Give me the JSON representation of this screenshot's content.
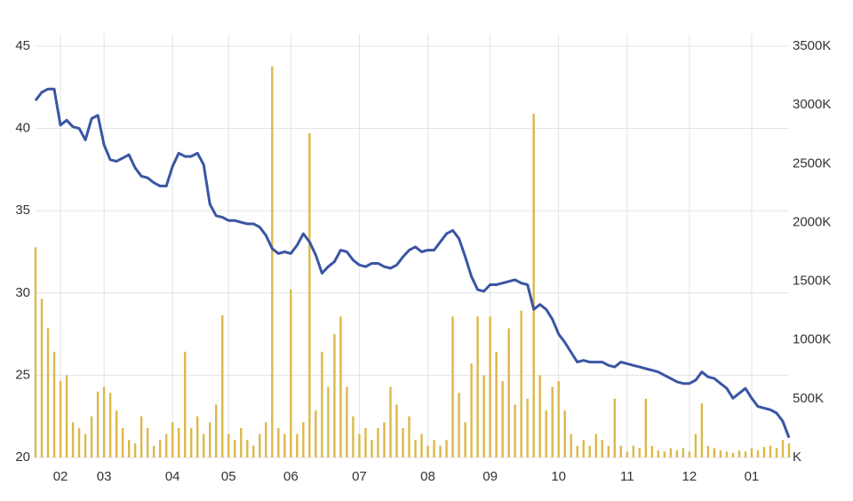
{
  "chart_data": {
    "type": "line",
    "categories": [
      null,
      null,
      null,
      null,
      "02",
      null,
      null,
      null,
      null,
      null,
      null,
      "03",
      null,
      null,
      null,
      null,
      null,
      null,
      null,
      null,
      null,
      null,
      "04",
      null,
      null,
      null,
      null,
      null,
      null,
      null,
      null,
      "05",
      null,
      null,
      null,
      null,
      null,
      null,
      null,
      null,
      null,
      "06",
      null,
      null,
      null,
      null,
      null,
      null,
      null,
      null,
      null,
      null,
      "07",
      null,
      null,
      null,
      null,
      null,
      null,
      null,
      null,
      null,
      null,
      "08",
      null,
      null,
      null,
      null,
      null,
      null,
      null,
      null,
      null,
      "09",
      null,
      null,
      null,
      null,
      null,
      null,
      null,
      null,
      null,
      null,
      "10",
      null,
      null,
      null,
      null,
      null,
      null,
      null,
      null,
      null,
      null,
      "11",
      null,
      null,
      null,
      null,
      null,
      null,
      null,
      null,
      null,
      "12",
      null,
      null,
      null,
      null,
      null,
      null,
      null,
      null,
      null,
      "01",
      null,
      null,
      null,
      null,
      null,
      null
    ],
    "series": [
      {
        "color": "#3a55a4",
        "values": [
          41.7,
          42.2,
          42.4,
          42.4,
          40.2,
          40.5,
          40.1,
          40.0,
          39.3,
          40.6,
          40.8,
          39.0,
          38.1,
          38.0,
          38.2,
          38.4,
          37.6,
          37.1,
          37.0,
          36.7,
          36.5,
          36.5,
          37.7,
          38.5,
          38.3,
          38.3,
          38.5,
          37.8,
          35.4,
          34.7,
          34.6,
          34.4,
          34.4,
          34.3,
          34.2,
          34.2,
          34.0,
          33.5,
          32.7,
          32.4,
          32.5,
          32.4,
          32.9,
          33.6,
          33.1,
          32.3,
          31.2,
          31.6,
          31.9,
          32.6,
          32.5,
          32.0,
          31.7,
          31.6,
          31.8,
          31.8,
          31.6,
          31.5,
          31.7,
          32.2,
          32.6,
          32.8,
          32.5,
          32.6,
          32.6,
          33.1,
          33.6,
          33.8,
          33.3,
          32.2,
          31.0,
          30.2,
          30.1,
          30.5,
          30.5,
          30.6,
          30.7,
          30.8,
          30.6,
          30.5,
          29.0,
          29.3,
          29.0,
          28.4,
          27.5,
          27.0,
          26.4,
          25.8,
          25.9,
          25.8,
          25.8,
          25.8,
          25.6,
          25.5,
          25.8,
          25.7,
          25.6,
          25.5,
          25.4,
          25.3,
          25.2,
          25.0,
          24.8,
          24.6,
          24.5,
          24.5,
          24.7,
          25.2,
          24.9,
          24.8,
          24.5,
          24.2,
          23.6,
          23.9,
          24.2,
          23.6,
          23.1,
          23.0,
          22.9,
          22.7,
          22.2,
          21.2
        ]
      },
      {
        "color": "#dcb84a",
        "type": "bar",
        "axis": "y2",
        "values": [
          1790000,
          1350000,
          1100000,
          900000,
          650000,
          700000,
          300000,
          250000,
          200000,
          350000,
          560000,
          600000,
          550000,
          400000,
          250000,
          150000,
          120000,
          350000,
          250000,
          100000,
          150000,
          200000,
          300000,
          250000,
          900000,
          250000,
          350000,
          200000,
          300000,
          450000,
          1210000,
          200000,
          150000,
          250000,
          150000,
          100000,
          200000,
          300000,
          3330000,
          250000,
          200000,
          1430000,
          200000,
          300000,
          2760000,
          400000,
          900000,
          600000,
          1050000,
          1200000,
          600000,
          350000,
          200000,
          250000,
          150000,
          250000,
          300000,
          600000,
          450000,
          250000,
          350000,
          150000,
          200000,
          100000,
          150000,
          100000,
          150000,
          1200000,
          550000,
          300000,
          800000,
          1200000,
          700000,
          1200000,
          900000,
          650000,
          1100000,
          450000,
          1250000,
          500000,
          2925000,
          700000,
          400000,
          600000,
          650000,
          400000,
          200000,
          100000,
          150000,
          100000,
          200000,
          150000,
          100000,
          500000,
          100000,
          50000,
          100000,
          80000,
          500000,
          100000,
          60000,
          50000,
          80000,
          60000,
          80000,
          50000,
          200000,
          460000,
          100000,
          80000,
          60000,
          50000,
          40000,
          60000,
          50000,
          80000,
          60000,
          90000,
          100000,
          80000,
          150000,
          120000
        ]
      }
    ],
    "ylim": [
      20,
      45
    ],
    "yticks": [
      20,
      25,
      30,
      35,
      40,
      45
    ],
    "y2lim": [
      0,
      3500000
    ],
    "y2ticks": [
      {
        "value": 0,
        "label": "K"
      },
      {
        "value": 500000,
        "label": "500K"
      },
      {
        "value": 1000000,
        "label": "1000K"
      },
      {
        "value": 1500000,
        "label": "1500K"
      },
      {
        "value": 2000000,
        "label": "2000K"
      },
      {
        "value": 2500000,
        "label": "2500K"
      },
      {
        "value": 3000000,
        "label": "3000K"
      },
      {
        "value": 3500000,
        "label": "3500K"
      }
    ],
    "grid": true
  }
}
